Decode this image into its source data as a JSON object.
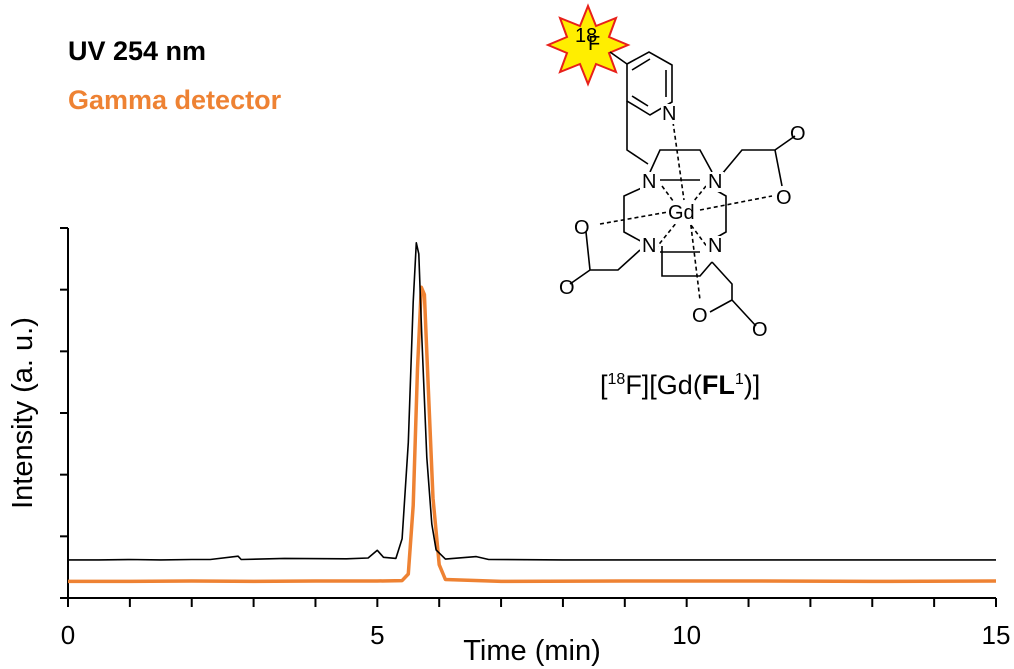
{
  "chart_data": {
    "type": "line",
    "xlabel": "Time (min)",
    "ylabel": "Intensity (a. u.)",
    "xlim": [
      0,
      15
    ],
    "xticks": [
      0,
      5,
      10,
      15
    ],
    "yunits": "relative intensity (0–1 of axis height)",
    "ylim": [
      0,
      1
    ],
    "series": [
      {
        "name": "UV 254 nm",
        "color": "#000000",
        "baseline": 0.103,
        "points": [
          [
            0.0,
            0.103
          ],
          [
            0.5,
            0.103
          ],
          [
            1.0,
            0.104
          ],
          [
            1.5,
            0.103
          ],
          [
            2.0,
            0.104
          ],
          [
            2.3,
            0.104
          ],
          [
            2.75,
            0.113
          ],
          [
            2.8,
            0.104
          ],
          [
            3.5,
            0.107
          ],
          [
            4.5,
            0.106
          ],
          [
            4.85,
            0.108
          ],
          [
            5.0,
            0.129
          ],
          [
            5.1,
            0.11
          ],
          [
            5.3,
            0.107
          ],
          [
            5.4,
            0.16
          ],
          [
            5.5,
            0.42
          ],
          [
            5.58,
            0.8
          ],
          [
            5.63,
            0.96
          ],
          [
            5.67,
            0.93
          ],
          [
            5.72,
            0.7
          ],
          [
            5.8,
            0.38
          ],
          [
            5.88,
            0.2
          ],
          [
            5.95,
            0.13
          ],
          [
            6.1,
            0.105
          ],
          [
            6.6,
            0.112
          ],
          [
            6.8,
            0.104
          ],
          [
            8.0,
            0.103
          ],
          [
            10.0,
            0.103
          ],
          [
            12.0,
            0.103
          ],
          [
            15.0,
            0.103
          ]
        ]
      },
      {
        "name": "Gamma detector",
        "color": "#ee8233",
        "baseline": 0.045,
        "points": [
          [
            0.0,
            0.045
          ],
          [
            1.0,
            0.045
          ],
          [
            2.0,
            0.046
          ],
          [
            3.0,
            0.045
          ],
          [
            4.0,
            0.046
          ],
          [
            5.0,
            0.046
          ],
          [
            5.4,
            0.047
          ],
          [
            5.5,
            0.065
          ],
          [
            5.58,
            0.25
          ],
          [
            5.65,
            0.62
          ],
          [
            5.71,
            0.84
          ],
          [
            5.76,
            0.82
          ],
          [
            5.82,
            0.58
          ],
          [
            5.9,
            0.27
          ],
          [
            6.0,
            0.09
          ],
          [
            6.1,
            0.05
          ],
          [
            7.0,
            0.045
          ],
          [
            9.0,
            0.046
          ],
          [
            11.0,
            0.046
          ],
          [
            13.0,
            0.045
          ],
          [
            15.0,
            0.046
          ]
        ]
      }
    ],
    "legend": [
      {
        "label": "UV 254 nm",
        "color": "#000000"
      },
      {
        "label": "Gamma detector",
        "color": "#ee8233"
      }
    ],
    "legend_position": "top-left",
    "grid": false
  },
  "structure": {
    "label_isotope": "18",
    "label_f": "F",
    "atom_n": "N",
    "atom_o": "O",
    "atom_gd": "Gd",
    "caption_part1": "[",
    "caption_iso": "18",
    "caption_part2": "F][Gd(",
    "caption_bold": "FL",
    "caption_sup": "1",
    "caption_part3": ")]",
    "star_color": "#ffee00",
    "star_outline": "#e8201a"
  }
}
